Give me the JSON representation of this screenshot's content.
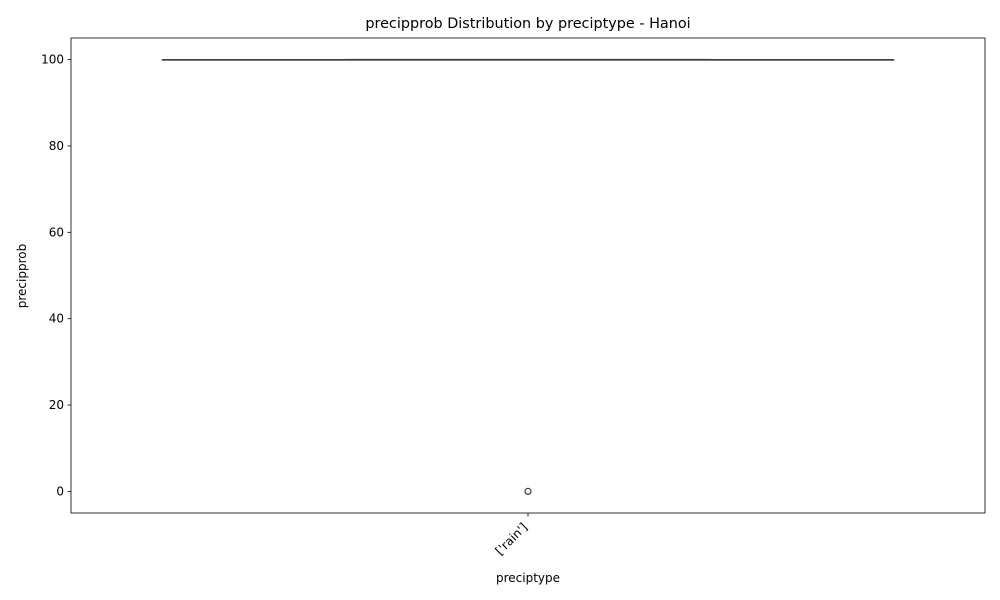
{
  "chart_data": {
    "type": "box",
    "title": "precipprob Distribution by preciptype - Hanoi",
    "xlabel": "preciptype",
    "ylabel": "precipprob",
    "categories": [
      "['rain']"
    ],
    "yticks": [
      0,
      20,
      40,
      60,
      80,
      100
    ],
    "ylim": [
      -5,
      105
    ],
    "boxes": [
      {
        "category": "['rain']",
        "whisker_low": 100,
        "q1": 100,
        "median": 100,
        "q3": 100,
        "whisker_high": 100,
        "outliers": [
          0
        ]
      }
    ],
    "grid": false,
    "legend": "none"
  }
}
